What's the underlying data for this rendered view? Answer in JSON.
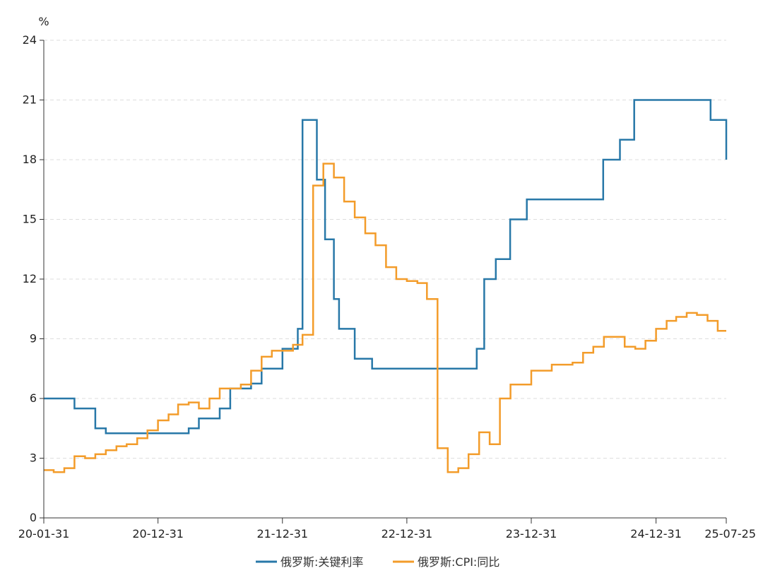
{
  "chart_data": {
    "type": "line",
    "unit": "%",
    "ylim": [
      0,
      24
    ],
    "yticks": [
      "0",
      "3",
      "6",
      "9",
      "12",
      "15",
      "18",
      "21",
      "24"
    ],
    "xticks": [
      "20-01-31",
      "20-12-31",
      "21-12-31",
      "22-12-31",
      "23-12-31",
      "24-12-31",
      "25-07-25"
    ],
    "xlim": [
      "2020-01-31",
      "2025-07-25"
    ],
    "grid": "horizontal-dashed",
    "legend_position": "bottom",
    "series": [
      {
        "name": "俄罗斯:关键利率",
        "color": "#2878a8",
        "step": true,
        "points": [
          [
            "2020-01-31",
            6.0
          ],
          [
            "2020-04-30",
            5.5
          ],
          [
            "2020-06-30",
            4.5
          ],
          [
            "2020-07-31",
            4.25
          ],
          [
            "2021-03-31",
            4.5
          ],
          [
            "2021-04-30",
            5.0
          ],
          [
            "2021-06-30",
            5.5
          ],
          [
            "2021-07-31",
            6.5
          ],
          [
            "2021-09-30",
            6.75
          ],
          [
            "2021-10-31",
            7.5
          ],
          [
            "2021-12-31",
            8.5
          ],
          [
            "2022-02-14",
            9.5
          ],
          [
            "2022-02-28",
            20.0
          ],
          [
            "2022-04-11",
            17.0
          ],
          [
            "2022-05-05",
            14.0
          ],
          [
            "2022-05-31",
            11.0
          ],
          [
            "2022-06-15",
            9.5
          ],
          [
            "2022-07-31",
            8.0
          ],
          [
            "2022-09-20",
            7.5
          ],
          [
            "2023-07-24",
            8.5
          ],
          [
            "2023-08-15",
            12.0
          ],
          [
            "2023-09-18",
            13.0
          ],
          [
            "2023-10-30",
            15.0
          ],
          [
            "2023-12-18",
            16.0
          ],
          [
            "2024-07-29",
            18.0
          ],
          [
            "2024-09-16",
            19.0
          ],
          [
            "2024-10-28",
            21.0
          ],
          [
            "2025-06-09",
            20.0
          ],
          [
            "2025-07-25",
            18.0
          ]
        ]
      },
      {
        "name": "俄罗斯:CPI:同比",
        "color": "#f39c2a",
        "step": true,
        "points": [
          [
            "2020-01-31",
            2.4
          ],
          [
            "2020-02-29",
            2.3
          ],
          [
            "2020-03-31",
            2.5
          ],
          [
            "2020-04-30",
            3.1
          ],
          [
            "2020-05-31",
            3.0
          ],
          [
            "2020-06-30",
            3.2
          ],
          [
            "2020-07-31",
            3.4
          ],
          [
            "2020-08-31",
            3.6
          ],
          [
            "2020-09-30",
            3.7
          ],
          [
            "2020-10-31",
            4.0
          ],
          [
            "2020-11-30",
            4.4
          ],
          [
            "2020-12-31",
            4.9
          ],
          [
            "2021-01-31",
            5.2
          ],
          [
            "2021-02-28",
            5.7
          ],
          [
            "2021-03-31",
            5.8
          ],
          [
            "2021-04-30",
            5.5
          ],
          [
            "2021-05-31",
            6.0
          ],
          [
            "2021-06-30",
            6.5
          ],
          [
            "2021-07-31",
            6.5
          ],
          [
            "2021-08-31",
            6.7
          ],
          [
            "2021-09-30",
            7.4
          ],
          [
            "2021-10-31",
            8.1
          ],
          [
            "2021-11-30",
            8.4
          ],
          [
            "2021-12-31",
            8.4
          ],
          [
            "2022-01-31",
            8.7
          ],
          [
            "2022-02-28",
            9.2
          ],
          [
            "2022-03-31",
            16.7
          ],
          [
            "2022-04-30",
            17.8
          ],
          [
            "2022-05-31",
            17.1
          ],
          [
            "2022-06-30",
            15.9
          ],
          [
            "2022-07-31",
            15.1
          ],
          [
            "2022-08-31",
            14.3
          ],
          [
            "2022-09-30",
            13.7
          ],
          [
            "2022-10-31",
            12.6
          ],
          [
            "2022-11-30",
            12.0
          ],
          [
            "2022-12-31",
            11.9
          ],
          [
            "2023-01-31",
            11.8
          ],
          [
            "2023-02-28",
            11.0
          ],
          [
            "2023-03-31",
            3.5
          ],
          [
            "2023-04-30",
            2.3
          ],
          [
            "2023-05-31",
            2.5
          ],
          [
            "2023-06-30",
            3.2
          ],
          [
            "2023-07-31",
            4.3
          ],
          [
            "2023-08-31",
            3.7
          ],
          [
            "2023-09-30",
            6.0
          ],
          [
            "2023-10-31",
            6.7
          ],
          [
            "2023-11-30",
            6.7
          ],
          [
            "2023-12-31",
            7.4
          ],
          [
            "2024-01-31",
            7.4
          ],
          [
            "2024-02-29",
            7.7
          ],
          [
            "2024-03-31",
            7.7
          ],
          [
            "2024-04-30",
            7.8
          ],
          [
            "2024-05-31",
            8.3
          ],
          [
            "2024-06-30",
            8.6
          ],
          [
            "2024-07-31",
            9.1
          ],
          [
            "2024-08-31",
            9.1
          ],
          [
            "2024-09-30",
            8.6
          ],
          [
            "2024-10-31",
            8.5
          ],
          [
            "2024-11-30",
            8.9
          ],
          [
            "2024-12-31",
            9.5
          ],
          [
            "2025-01-31",
            9.9
          ],
          [
            "2025-02-28",
            10.1
          ],
          [
            "2025-03-31",
            10.3
          ],
          [
            "2025-04-30",
            10.2
          ],
          [
            "2025-05-31",
            9.9
          ],
          [
            "2025-06-30",
            9.4
          ],
          [
            "2025-07-25",
            9.4
          ]
        ]
      }
    ]
  }
}
